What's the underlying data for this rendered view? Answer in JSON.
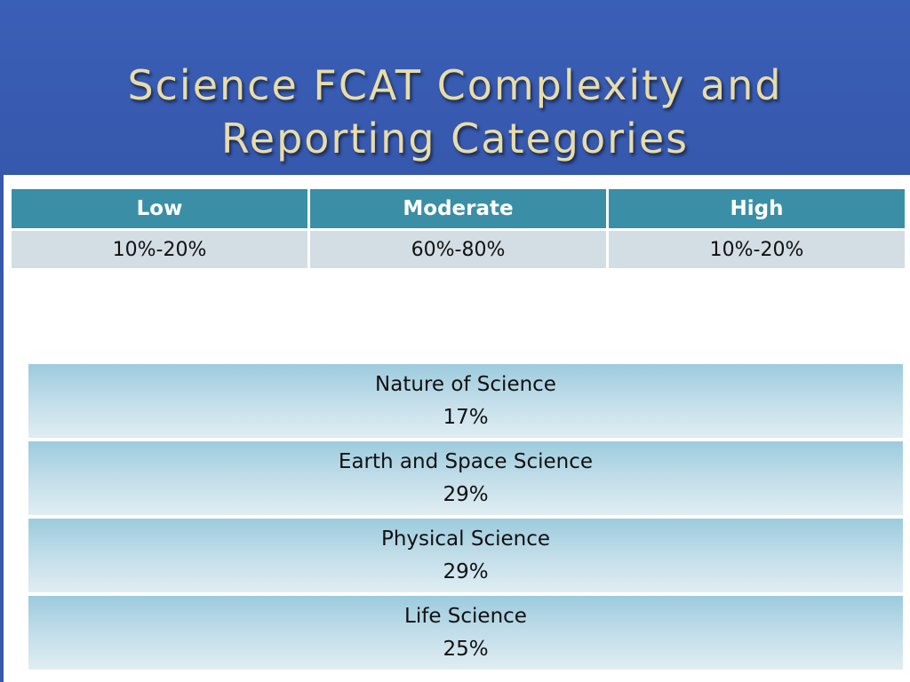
{
  "slide": {
    "title": "Science FCAT Complexity and\nReporting Categories"
  },
  "complexity_table": {
    "headers": [
      "Low",
      "Moderate",
      "High"
    ],
    "values": [
      "10%-20%",
      "60%-80%",
      "10%-20%"
    ]
  },
  "reporting_categories": [
    {
      "name": "Nature of Science",
      "percent": "17%"
    },
    {
      "name": "Earth and Space Science",
      "percent": "29%"
    },
    {
      "name": "Physical Science",
      "percent": "29%"
    },
    {
      "name": "Life Science",
      "percent": "25%"
    }
  ],
  "colors": {
    "title_band": "#3758ae",
    "title_text": "#e8dca8",
    "table_header": "#3a8fa7",
    "table_row": "#d3dde4"
  }
}
